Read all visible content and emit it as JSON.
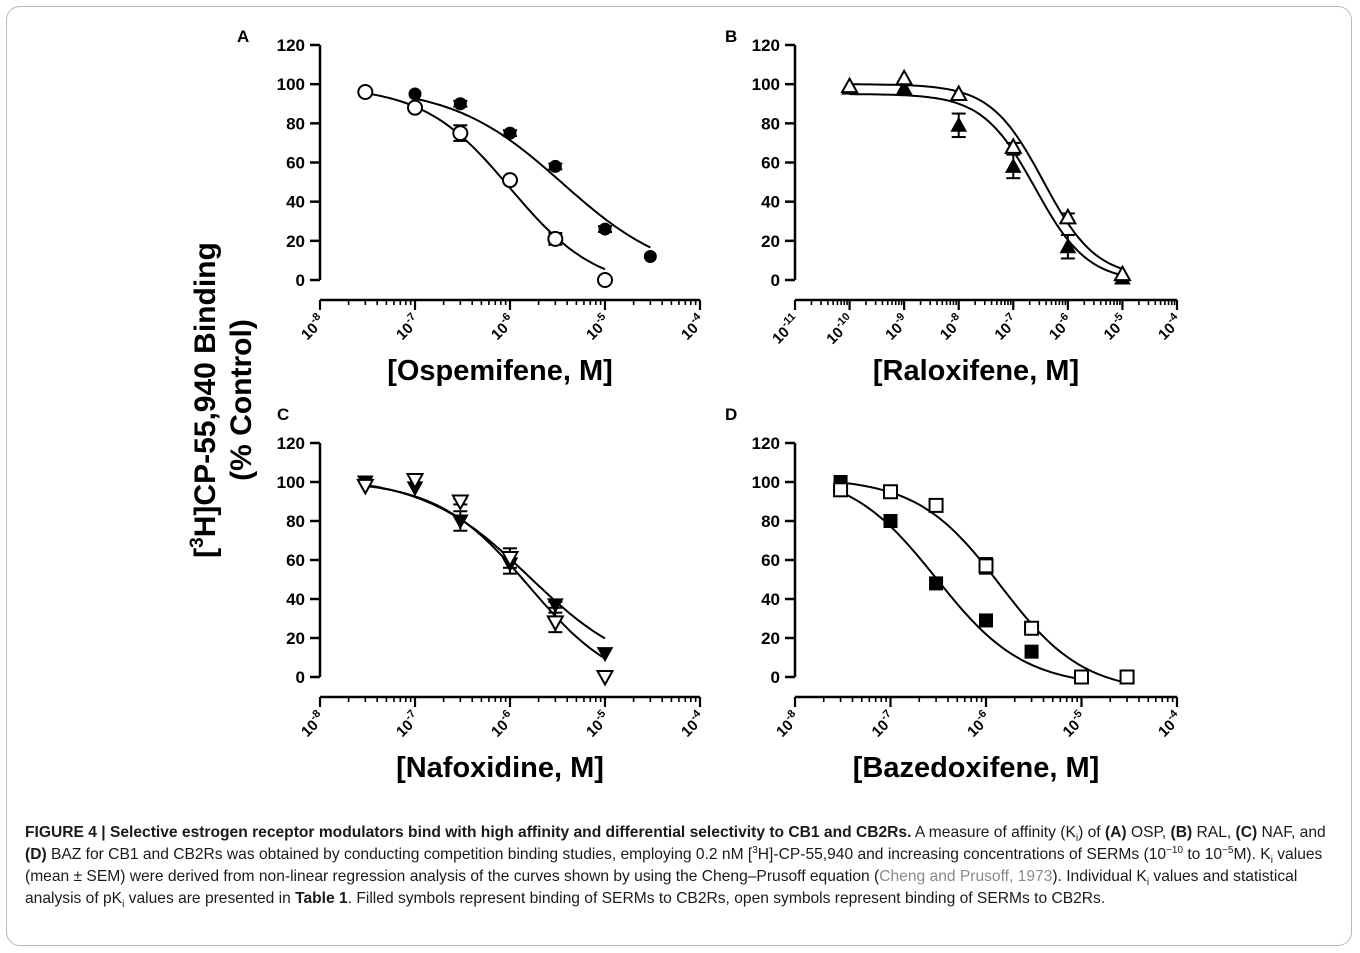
{
  "figure": {
    "y_axis_title_line1": "[3H]CP-55,940 Binding",
    "y_axis_title_sup": "3",
    "y_axis_title_main": "H]CP-55,940 Binding",
    "y_axis_title_line2": "(% Control)"
  },
  "chart_data": [
    {
      "panel": "A",
      "type": "scatter",
      "xlabel": "[Ospemifene, M]",
      "x_scale": "log",
      "xlim": [
        1e-08,
        0.0001
      ],
      "x_ticks": [
        "10-8",
        "10-7",
        "10-6",
        "10-5",
        "10-4"
      ],
      "ylim": [
        0,
        120
      ],
      "y_ticks": [
        0,
        20,
        40,
        60,
        80,
        100,
        120
      ],
      "series": [
        {
          "symbol": "filled-circle",
          "x": [
            1e-07,
            3e-07,
            1e-06,
            3e-06,
            1e-05,
            3e-05
          ],
          "y": [
            95,
            90,
            75,
            58,
            26,
            12
          ],
          "err": [
            1,
            1.5,
            1.5,
            1.5,
            1.5,
            1
          ],
          "fit": {
            "top": 99,
            "bottom": 0,
            "logec50": -5.45,
            "hill": 0.75
          }
        },
        {
          "symbol": "open-circle",
          "x": [
            3e-08,
            1e-07,
            3e-07,
            1e-06,
            3e-06,
            1e-05
          ],
          "y": [
            96,
            88,
            75,
            51,
            21,
            0
          ],
          "err": [
            1,
            1.5,
            4,
            1.5,
            3,
            1
          ],
          "fit": {
            "top": 99,
            "bottom": -5,
            "logec50": -6.0,
            "hill": 0.95
          }
        }
      ]
    },
    {
      "panel": "B",
      "type": "scatter",
      "xlabel": "[Raloxifene, M]",
      "x_scale": "log",
      "xlim": [
        1e-11,
        0.0001
      ],
      "x_ticks": [
        "10-11",
        "10-10",
        "10-9",
        "10-8",
        "10-7",
        "10-6",
        "10-5",
        "10-4"
      ],
      "ylim": [
        0,
        120
      ],
      "y_ticks": [
        0,
        20,
        40,
        60,
        80,
        100,
        120
      ],
      "series": [
        {
          "symbol": "filled-triangle",
          "x": [
            1e-10,
            1e-09,
            1e-08,
            1e-07,
            1e-06,
            1e-05
          ],
          "y": [
            98,
            98,
            79,
            58,
            17,
            1
          ],
          "err": [
            1,
            1,
            6,
            6,
            6,
            1
          ],
          "fit": {
            "top": 95,
            "bottom": -1,
            "logec50": -6.6,
            "hill": 0.9
          }
        },
        {
          "symbol": "open-triangle",
          "x": [
            1e-10,
            1e-09,
            1e-08,
            1e-07,
            1e-06,
            1e-05
          ],
          "y": [
            99,
            103,
            95,
            68,
            32,
            3
          ],
          "err": [
            1,
            1,
            1,
            2,
            2,
            1
          ],
          "fit": {
            "top": 100,
            "bottom": 1,
            "logec50": -6.45,
            "hill": 0.9
          }
        }
      ]
    },
    {
      "panel": "C",
      "type": "scatter",
      "xlabel": "[Nafoxidine, M]",
      "x_scale": "log",
      "xlim": [
        1e-08,
        0.0001
      ],
      "x_ticks": [
        "10-8",
        "10-7",
        "10-6",
        "10-5",
        "10-4"
      ],
      "ylim": [
        0,
        120
      ],
      "y_ticks": [
        0,
        20,
        40,
        60,
        80,
        100,
        120
      ],
      "series": [
        {
          "symbol": "filled-triangle-down",
          "x": [
            3e-08,
            1e-07,
            3e-07,
            1e-06,
            3e-06,
            1e-05
          ],
          "y": [
            100,
            97,
            80,
            58,
            37,
            12
          ],
          "err": [
            1,
            1,
            5,
            5,
            1.5,
            1
          ],
          "fit": {
            "top": 103,
            "bottom": 0,
            "logec50": -5.8,
            "hill": 0.78
          }
        },
        {
          "symbol": "open-triangle-down",
          "x": [
            3e-08,
            1e-07,
            3e-07,
            1e-06,
            3e-06,
            1e-05
          ],
          "y": [
            98,
            101,
            90,
            61,
            28,
            0
          ],
          "err": [
            1,
            1,
            1.5,
            5,
            5,
            1
          ],
          "fit": {
            "top": 101,
            "bottom": -8,
            "logec50": -5.8,
            "hill": 0.9
          }
        }
      ]
    },
    {
      "panel": "D",
      "type": "scatter",
      "xlabel": "[Bazedoxifene, M]",
      "x_scale": "log",
      "xlim": [
        1e-08,
        0.0001
      ],
      "x_ticks": [
        "10-8",
        "10-7",
        "10-6",
        "10-5",
        "10-4"
      ],
      "ylim": [
        0,
        120
      ],
      "y_ticks": [
        0,
        20,
        40,
        60,
        80,
        100,
        120
      ],
      "series": [
        {
          "symbol": "filled-square",
          "x": [
            3e-08,
            1e-07,
            3e-07,
            1e-06,
            3e-06,
            1e-05
          ],
          "y": [
            100,
            80,
            48,
            29,
            13,
            0
          ],
          "err": [
            1,
            1,
            1.5,
            1.5,
            1,
            1
          ],
          "fit": {
            "top": 106,
            "bottom": -5,
            "logec50": -6.52,
            "hill": 0.95
          }
        },
        {
          "symbol": "open-square",
          "x": [
            3e-08,
            1e-07,
            3e-07,
            1e-06,
            3e-06,
            1e-05,
            3e-05
          ],
          "y": [
            96,
            95,
            88,
            57,
            25,
            0,
            0
          ],
          "err": [
            1,
            1,
            1,
            4,
            1.5,
            1,
            1
          ],
          "fit": {
            "top": 102,
            "bottom": -8,
            "logec50": -5.85,
            "hill": 1.0
          }
        }
      ]
    }
  ],
  "caption": {
    "figure_label": "FIGURE 4 | Selective estrogen receptor modulators bind with high affinity and differential selectivity to CB1 and CB2Rs.",
    "s1": " A measure of affinity (K",
    "sub_i": "i",
    "s2": ") of ",
    "a": "(A)",
    "s3": " OSP, ",
    "b": "(B)",
    "s4": " RAL, ",
    "c": "(C)",
    "s5": " NAF, and ",
    "d": "(D)",
    "s6": " BAZ for CB1 and CB2Rs was obtained by conducting competition binding studies, employing 0.2 nM [",
    "sup3": "3",
    "s7": "H]-CP-55,940 and increasing concentrations of SERMs (10",
    "sup_m10": "−10",
    "s8": " to 10",
    "sup_m5": "−5",
    "s9": "M). K",
    "s10": " values (mean ± SEM) were derived from non-linear regression analysis of the curves shown by using the Cheng–Prusoff equation (",
    "ref": "Cheng and Prusoff, 1973",
    "s11": "). Individual K",
    "s12": " values and statistical analysis of pK",
    "s13": " values are presented in ",
    "table": "Table 1",
    "s14": ". Filled symbols represent binding of SERMs to CB2Rs, open symbols represent binding of SERMs to CB2Rs."
  }
}
